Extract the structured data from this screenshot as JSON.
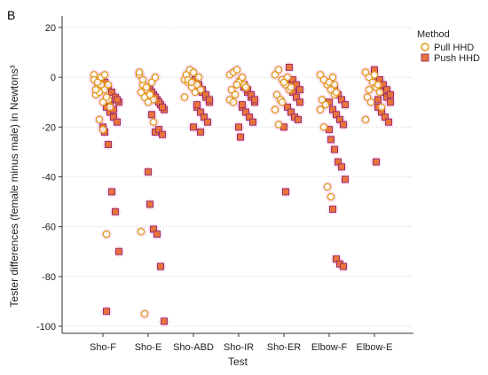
{
  "chart_data": {
    "type": "scatter",
    "panel_label": "B",
    "xlabel": "Test",
    "ylabel": "Tester differences (female minus male) in Newtons³",
    "categories": [
      "Sho-F",
      "Sho-E",
      "Sho-ABD",
      "Sho-IR",
      "Sho-ER",
      "Elbow-F",
      "Elbow-E"
    ],
    "ylim": [
      -100,
      20
    ],
    "yticks": [
      "20",
      "0",
      "-20",
      "-40",
      "-60",
      "-80",
      "-100"
    ],
    "ytick_values": [
      20,
      0,
      -20,
      -40,
      -60,
      -80,
      -100
    ],
    "grid": "dotted horizontal",
    "legend": {
      "title": "Method",
      "placement": "top-right",
      "entries": [
        "Pull HHD",
        "Push HHD"
      ]
    },
    "colors": {
      "pull": "#E09B1A",
      "push_fill": "#E8743A",
      "push_edge": "#A0306A",
      "halo": "#F0A8E8"
    },
    "series": [
      {
        "name": "Pull HHD",
        "marker": "circle",
        "values": [
          [
            1,
            -4,
            -3,
            -5,
            -9,
            -7,
            -6,
            -10,
            -8,
            -12,
            -1,
            -2,
            0,
            1,
            -3,
            -5,
            -17,
            -21,
            -63
          ],
          [
            1,
            -3,
            -5,
            -7,
            -9,
            -6,
            -8,
            -10,
            -2,
            0,
            2,
            -1,
            -4,
            -7,
            -18,
            -62,
            -95
          ],
          [
            -1,
            -2,
            -4,
            -6,
            0,
            1,
            3,
            2,
            -3,
            -5,
            -8,
            -1,
            -2
          ],
          [
            1,
            2,
            3,
            -1,
            -3,
            -5,
            -7,
            -2,
            0,
            -4,
            -9,
            -10,
            -3
          ],
          [
            1,
            3,
            -1,
            -3,
            -5,
            -7,
            -9,
            -2,
            0,
            -4,
            -13,
            -19,
            -10
          ],
          [
            1,
            -1,
            -3,
            -5,
            -7,
            -9,
            -11,
            -2,
            0,
            -6,
            -13,
            -20,
            -44,
            -48,
            -3
          ],
          [
            2,
            0,
            -2,
            -4,
            -6,
            -8,
            -10,
            1,
            -3,
            -12,
            -17,
            -5
          ]
        ]
      },
      {
        "name": "Push HHD",
        "marker": "square",
        "values": [
          [
            -2,
            -4,
            -6,
            -8,
            -10,
            -12,
            -14,
            -16,
            -18,
            -20,
            -22,
            -27,
            -46,
            -54,
            -70,
            -94,
            -11,
            -13,
            -9
          ],
          [
            -5,
            -7,
            -9,
            -11,
            -13,
            -15,
            -22,
            -21,
            -23,
            -38,
            -51,
            -61,
            -63,
            -76,
            -98,
            -6,
            -8,
            -10,
            -12
          ],
          [
            -2,
            -4,
            -6,
            -8,
            -10,
            -12,
            -14,
            -16,
            -18,
            -20,
            -1,
            -3,
            -5,
            -7,
            -9,
            -11,
            -22
          ],
          [
            -2,
            -4,
            -6,
            -8,
            -10,
            -12,
            -14,
            -16,
            -18,
            -20,
            -24,
            -3,
            -5,
            -7,
            -9,
            -11
          ],
          [
            -2,
            -4,
            -6,
            -8,
            -10,
            -12,
            -14,
            -16,
            -17,
            -20,
            -46,
            4,
            -1,
            -3,
            -5
          ],
          [
            -3,
            -5,
            -7,
            -9,
            -11,
            -13,
            -15,
            -17,
            -19,
            -21,
            -25,
            -29,
            -34,
            -36,
            -41,
            -53,
            -73,
            -75,
            -76,
            -10
          ],
          [
            -2,
            -4,
            -6,
            -8,
            -10,
            -12,
            -14,
            -16,
            -18,
            3,
            -34,
            -1,
            -3,
            -5,
            -7,
            -9
          ]
        ]
      }
    ]
  }
}
